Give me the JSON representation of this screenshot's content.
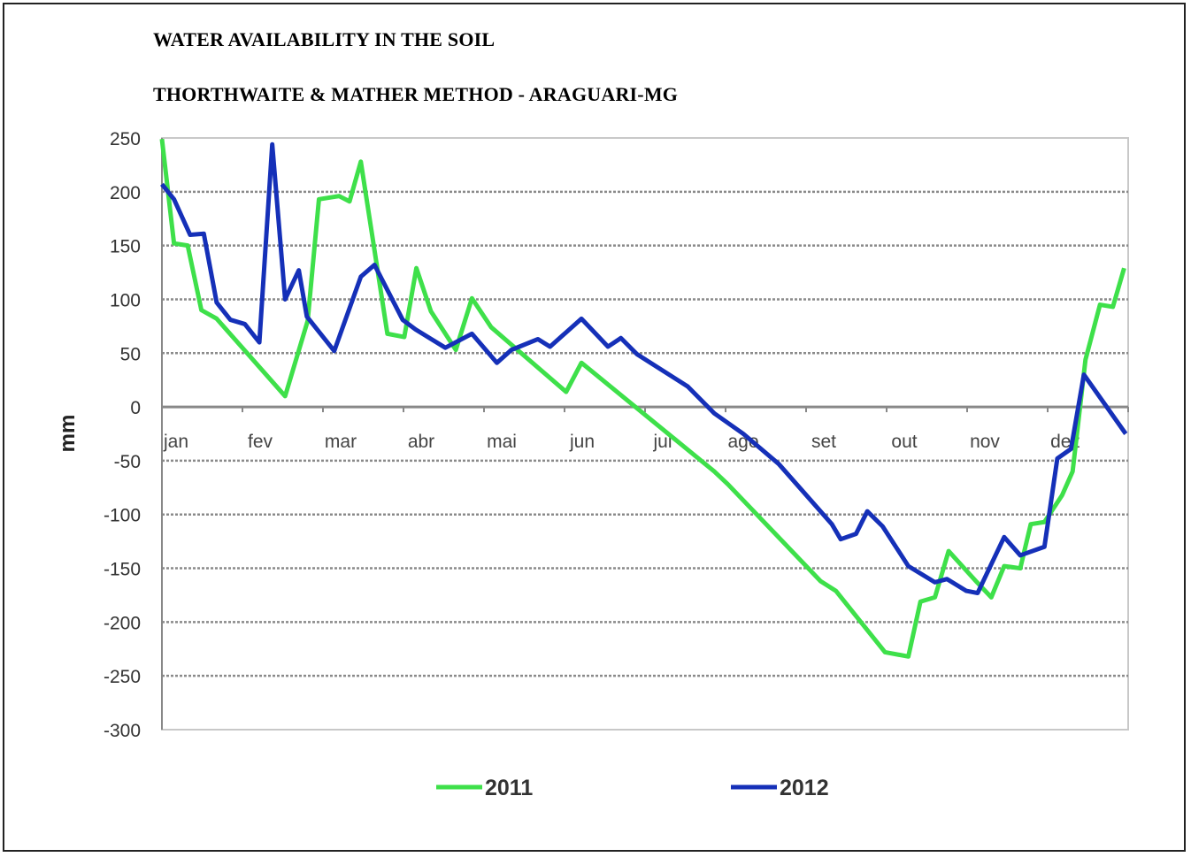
{
  "chart_data": {
    "type": "line",
    "title": "WATER AVAILABILITY IN THE SOIL",
    "subtitle": "THORTHWAITE & MATHER METHOD - ARAGUARI-MG",
    "xlabel": "",
    "ylabel": "mm",
    "ylim": [
      -300,
      250
    ],
    "yticks": [
      250,
      200,
      150,
      100,
      50,
      0,
      -50,
      -100,
      -150,
      -200,
      -250,
      -300
    ],
    "categories": [
      "jan",
      "fev",
      "mar",
      "abr",
      "mai",
      "jun",
      "jul",
      "ago",
      "set",
      "out",
      "nov",
      "dez"
    ],
    "x_units": "months since start of January",
    "grid": true,
    "legend": "bottom",
    "series": [
      {
        "name": "2011",
        "color": "#3ee04a",
        "points": [
          [
            0,
            249
          ],
          [
            0.15,
            152
          ],
          [
            0.32,
            150
          ],
          [
            0.49,
            90
          ],
          [
            0.68,
            82
          ],
          [
            1.53,
            10
          ],
          [
            1.81,
            80
          ],
          [
            1.95,
            193
          ],
          [
            2.2,
            196
          ],
          [
            2.33,
            191
          ],
          [
            2.47,
            228
          ],
          [
            2.8,
            68
          ],
          [
            3.01,
            65
          ],
          [
            3.16,
            129
          ],
          [
            3.34,
            89
          ],
          [
            3.65,
            53
          ],
          [
            3.85,
            101
          ],
          [
            4.09,
            74
          ],
          [
            5.02,
            14
          ],
          [
            5.21,
            41
          ],
          [
            6.86,
            -60
          ],
          [
            7.03,
            -72
          ],
          [
            8.18,
            -162
          ],
          [
            8.37,
            -171
          ],
          [
            8.98,
            -228
          ],
          [
            9.27,
            -232
          ],
          [
            9.42,
            -181
          ],
          [
            9.6,
            -177
          ],
          [
            9.77,
            -134
          ],
          [
            10.11,
            -162
          ],
          [
            10.3,
            -177
          ],
          [
            10.46,
            -148
          ],
          [
            10.66,
            -150
          ],
          [
            10.79,
            -109
          ],
          [
            10.96,
            -107
          ],
          [
            11.18,
            -82
          ],
          [
            11.31,
            -60
          ],
          [
            11.47,
            44
          ],
          [
            11.65,
            95
          ],
          [
            11.81,
            93
          ],
          [
            11.95,
            129
          ]
        ]
      },
      {
        "name": "2012",
        "color": "#1530b8",
        "points": [
          [
            0,
            207
          ],
          [
            0.15,
            193
          ],
          [
            0.35,
            160
          ],
          [
            0.52,
            161
          ],
          [
            0.68,
            97
          ],
          [
            0.85,
            81
          ],
          [
            1.03,
            77
          ],
          [
            1.21,
            60
          ],
          [
            1.37,
            244
          ],
          [
            1.53,
            100
          ],
          [
            1.7,
            127
          ],
          [
            1.8,
            84
          ],
          [
            2.14,
            52
          ],
          [
            2.47,
            121
          ],
          [
            2.64,
            132
          ],
          [
            2.99,
            81
          ],
          [
            3.15,
            72
          ],
          [
            3.52,
            55
          ],
          [
            3.85,
            68
          ],
          [
            4.16,
            41
          ],
          [
            4.34,
            53
          ],
          [
            4.67,
            63
          ],
          [
            4.82,
            56
          ],
          [
            5.21,
            82
          ],
          [
            5.54,
            56
          ],
          [
            5.7,
            64
          ],
          [
            5.9,
            49
          ],
          [
            6.53,
            19
          ],
          [
            6.86,
            -6
          ],
          [
            7.22,
            -25
          ],
          [
            7.66,
            -53
          ],
          [
            8.32,
            -109
          ],
          [
            8.43,
            -123
          ],
          [
            8.62,
            -118
          ],
          [
            8.76,
            -97
          ],
          [
            8.95,
            -111
          ],
          [
            9.27,
            -148
          ],
          [
            9.6,
            -163
          ],
          [
            9.75,
            -160
          ],
          [
            9.99,
            -171
          ],
          [
            10.13,
            -173
          ],
          [
            10.46,
            -121
          ],
          [
            10.66,
            -138
          ],
          [
            10.96,
            -130
          ],
          [
            11.12,
            -48
          ],
          [
            11.29,
            -39
          ],
          [
            11.45,
            30
          ],
          [
            11.97,
            -25
          ]
        ]
      }
    ]
  }
}
